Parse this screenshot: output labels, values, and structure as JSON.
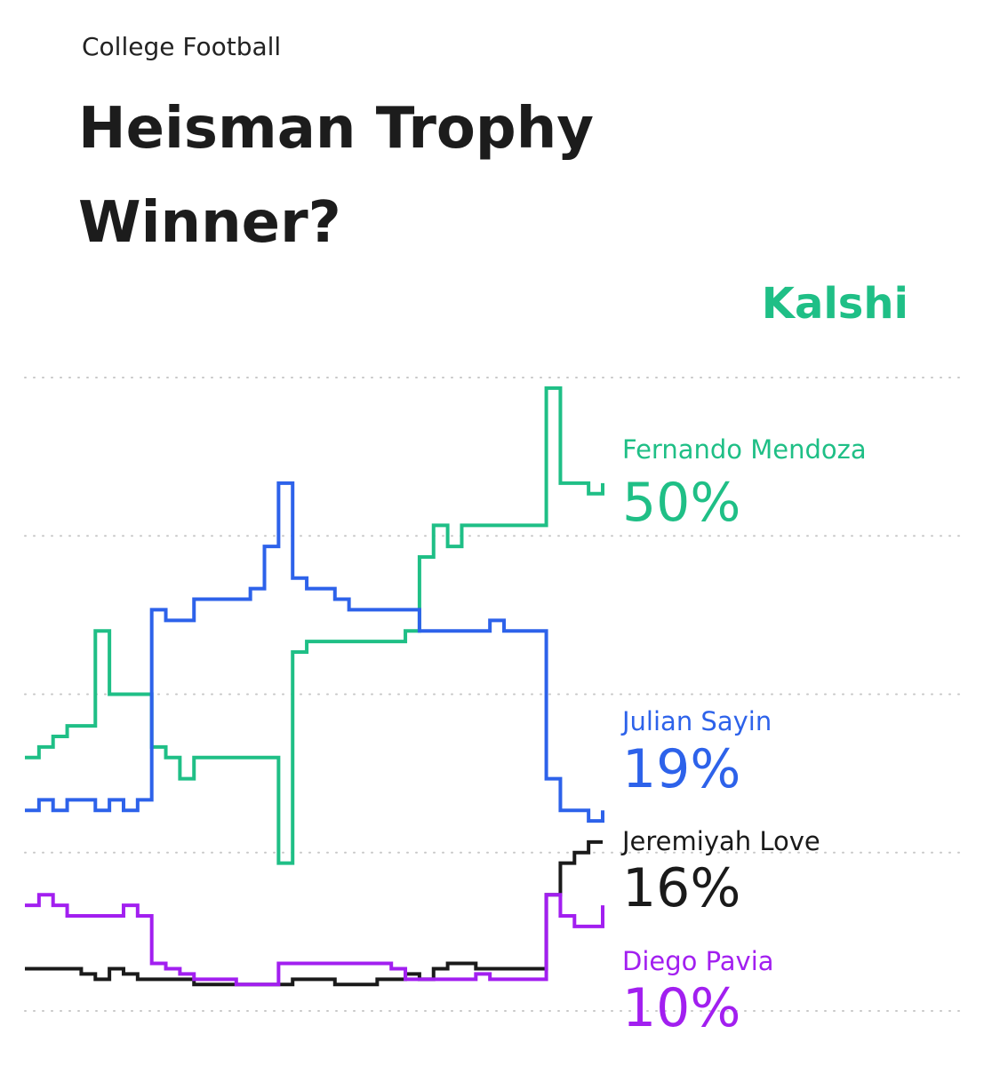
{
  "header": {
    "category": "College Football",
    "title": "Heisman Trophy Winner?",
    "brand": "Kalshi"
  },
  "chart_data": {
    "type": "step-line",
    "ylim": [
      0,
      60
    ],
    "yticks": [
      0,
      15,
      30,
      45,
      60
    ],
    "grid": true,
    "series": [
      {
        "name": "Fernando Mendoza",
        "color": "#1fbf86",
        "values": [
          24,
          25,
          26,
          27,
          27,
          36,
          30,
          30,
          30,
          25,
          24,
          22,
          24,
          24,
          24,
          24,
          24,
          24,
          14,
          34,
          35,
          35,
          35,
          35,
          35,
          35,
          35,
          36,
          43,
          46,
          44,
          46,
          46,
          46,
          46,
          46,
          46,
          59,
          50,
          50,
          49,
          50
        ],
        "value_labels": [
          null,
          null,
          null,
          null,
          null,
          null,
          null,
          null,
          null,
          null,
          null,
          null,
          null,
          null,
          null,
          null,
          null,
          null,
          null,
          null,
          null,
          null,
          null,
          null,
          null,
          null,
          null,
          null,
          null,
          null,
          null,
          null,
          null,
          null,
          null,
          null,
          null,
          null,
          null,
          null,
          null,
          "50%"
        ]
      },
      {
        "name": "Julian Sayin",
        "color": "#2d62ea",
        "values": [
          19,
          20,
          19,
          20,
          20,
          19,
          20,
          19,
          20,
          38,
          37,
          37,
          39,
          39,
          39,
          39,
          40,
          44,
          50,
          41,
          40,
          40,
          39,
          38,
          38,
          38,
          38,
          38,
          36,
          36,
          36,
          36,
          36,
          37,
          36,
          36,
          36,
          22,
          19,
          19,
          18,
          19
        ],
        "value_labels": [
          null,
          null,
          null,
          null,
          null,
          null,
          null,
          null,
          null,
          null,
          null,
          null,
          null,
          null,
          null,
          null,
          null,
          null,
          null,
          null,
          null,
          null,
          null,
          null,
          null,
          null,
          null,
          null,
          null,
          null,
          null,
          null,
          null,
          null,
          null,
          null,
          null,
          null,
          null,
          null,
          null,
          "19%"
        ]
      },
      {
        "name": "Jeremiyah Love",
        "color": "#1a1a1a",
        "values": [
          4,
          4,
          4,
          4,
          3.5,
          3,
          4,
          3.5,
          3,
          3,
          3,
          3,
          2.5,
          2.5,
          2.5,
          2.5,
          2.5,
          2.5,
          2.5,
          3,
          3,
          3,
          2.5,
          2.5,
          2.5,
          3,
          3,
          3.5,
          3,
          4,
          4.5,
          4.5,
          4,
          4,
          4,
          4,
          4,
          11,
          14,
          15,
          16,
          16
        ],
        "value_labels": [
          null,
          null,
          null,
          null,
          null,
          null,
          null,
          null,
          null,
          null,
          null,
          null,
          null,
          null,
          null,
          null,
          null,
          null,
          null,
          null,
          null,
          null,
          null,
          null,
          null,
          null,
          null,
          null,
          null,
          null,
          null,
          null,
          null,
          null,
          null,
          null,
          null,
          null,
          null,
          null,
          null,
          "16%"
        ]
      },
      {
        "name": "Diego Pavia",
        "color": "#a21ff0",
        "values": [
          10,
          11,
          10,
          9,
          9,
          9,
          9,
          10,
          9,
          4.5,
          4,
          3.5,
          3,
          3,
          3,
          2.5,
          2.5,
          2.5,
          4.5,
          4.5,
          4.5,
          4.5,
          4.5,
          4.5,
          4.5,
          4.5,
          4,
          3,
          3,
          3,
          3,
          3,
          3.5,
          3,
          3,
          3,
          3,
          11,
          9,
          8,
          8,
          10
        ],
        "value_labels": [
          null,
          null,
          null,
          null,
          null,
          null,
          null,
          null,
          null,
          null,
          null,
          null,
          null,
          null,
          null,
          null,
          null,
          null,
          null,
          null,
          null,
          null,
          null,
          null,
          null,
          null,
          null,
          null,
          null,
          null,
          null,
          null,
          null,
          null,
          null,
          null,
          null,
          null,
          null,
          null,
          null,
          "10%"
        ]
      }
    ]
  }
}
